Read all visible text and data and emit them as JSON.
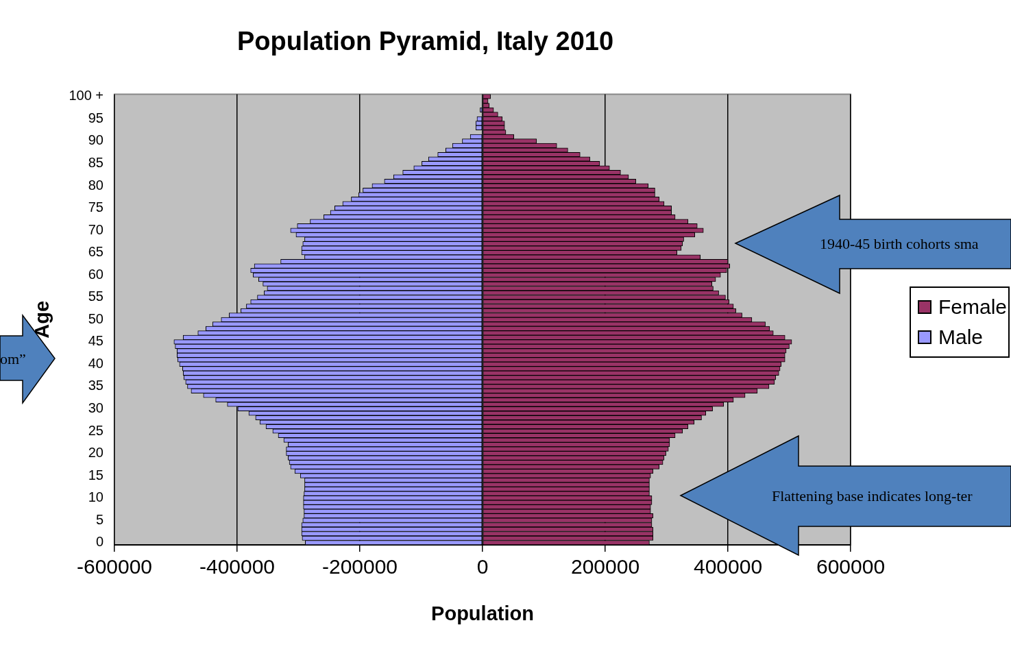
{
  "chart_data": {
    "type": "bar",
    "orientation": "horizontal",
    "stacked": true,
    "title": "Population Pyramid, Italy 2010",
    "xlabel": "Population",
    "ylabel": "Age",
    "categories": [
      "100 +",
      null,
      null,
      null,
      null,
      "95",
      null,
      null,
      null,
      null,
      "90",
      null,
      null,
      null,
      null,
      "85",
      null,
      null,
      null,
      null,
      "80",
      null,
      null,
      null,
      null,
      "75",
      null,
      null,
      null,
      null,
      "70",
      null,
      null,
      null,
      null,
      "65",
      null,
      null,
      null,
      null,
      "60",
      null,
      null,
      null,
      null,
      "55",
      null,
      null,
      null,
      null,
      "50",
      null,
      null,
      null,
      null,
      "45",
      null,
      null,
      null,
      null,
      "40",
      null,
      null,
      null,
      null,
      "35",
      null,
      null,
      null,
      null,
      "30",
      null,
      null,
      null,
      null,
      "25",
      null,
      null,
      null,
      null,
      "20",
      null,
      null,
      null,
      null,
      "15",
      null,
      null,
      null,
      null,
      "10",
      null,
      null,
      null,
      null,
      "5",
      null,
      null,
      null,
      null,
      "0"
    ],
    "series": [
      {
        "name": "Male",
        "color": "#9999ff",
        "values": [
          null,
          null,
          null,
          -4000,
          null,
          -9000,
          -11000,
          -11000,
          null,
          -20000,
          -33000,
          -49000,
          -60000,
          -73000,
          -88000,
          -99000,
          -112000,
          -130000,
          -145000,
          -160000,
          -180000,
          -195000,
          -202000,
          -214000,
          -228000,
          -241000,
          -248000,
          -259000,
          -281000,
          -302000,
          -313000,
          -304000,
          -290000,
          -293000,
          -295000,
          -295000,
          -290000,
          -329000,
          -372000,
          -378000,
          -374000,
          -365000,
          -358000,
          -351000,
          -356000,
          -367000,
          -378000,
          -385000,
          -394000,
          -413000,
          -426000,
          -440000,
          -451000,
          -464000,
          -488000,
          -503000,
          -501000,
          -498000,
          -498000,
          -497000,
          -494000,
          -489000,
          -488000,
          -487000,
          -484000,
          -481000,
          -475000,
          -455000,
          -435000,
          -416000,
          -399000,
          -381000,
          -370000,
          -363000,
          -353000,
          -342000,
          -333000,
          -324000,
          -317000,
          -320000,
          -320000,
          -317000,
          -315000,
          -313000,
          -306000,
          -297000,
          -290000,
          -290000,
          -290000,
          -291000,
          -292000,
          -292000,
          -292000,
          -291000,
          -291000,
          -293000,
          -295000,
          -295000,
          -295000,
          -294000,
          -289000
        ]
      },
      {
        "name": "Female",
        "color": "#993366",
        "values": [
          13000,
          9000,
          11000,
          18000,
          25000,
          32000,
          36000,
          36000,
          38000,
          51000,
          88000,
          121000,
          139000,
          159000,
          175000,
          191000,
          207000,
          225000,
          238000,
          250000,
          270000,
          281000,
          281000,
          288000,
          296000,
          308000,
          308000,
          314000,
          335000,
          350000,
          360000,
          346000,
          328000,
          326000,
          324000,
          317000,
          355000,
          400000,
          403000,
          398000,
          388000,
          380000,
          374000,
          376000,
          385000,
          396000,
          402000,
          409000,
          413000,
          423000,
          439000,
          461000,
          468000,
          474000,
          493000,
          504000,
          500000,
          495000,
          493000,
          493000,
          487000,
          485000,
          483000,
          478000,
          476000,
          467000,
          448000,
          428000,
          409000,
          393000,
          375000,
          364000,
          357000,
          345000,
          335000,
          326000,
          314000,
          305000,
          305000,
          303000,
          299000,
          296000,
          294000,
          288000,
          278000,
          274000,
          272000,
          272000,
          272000,
          272000,
          276000,
          276000,
          274000,
          274000,
          278000,
          276000,
          276000,
          278000,
          278000,
          278000,
          272000
        ]
      }
    ],
    "xlim": [
      -600000,
      600000
    ],
    "xticks": [
      -600000,
      -400000,
      -200000,
      0,
      200000,
      400000,
      600000
    ],
    "grid": "x",
    "legend": "right",
    "annotations": [
      "1940-45 birth cohorts sma",
      "Flattening base indicates long-ter",
      "om”"
    ]
  }
}
